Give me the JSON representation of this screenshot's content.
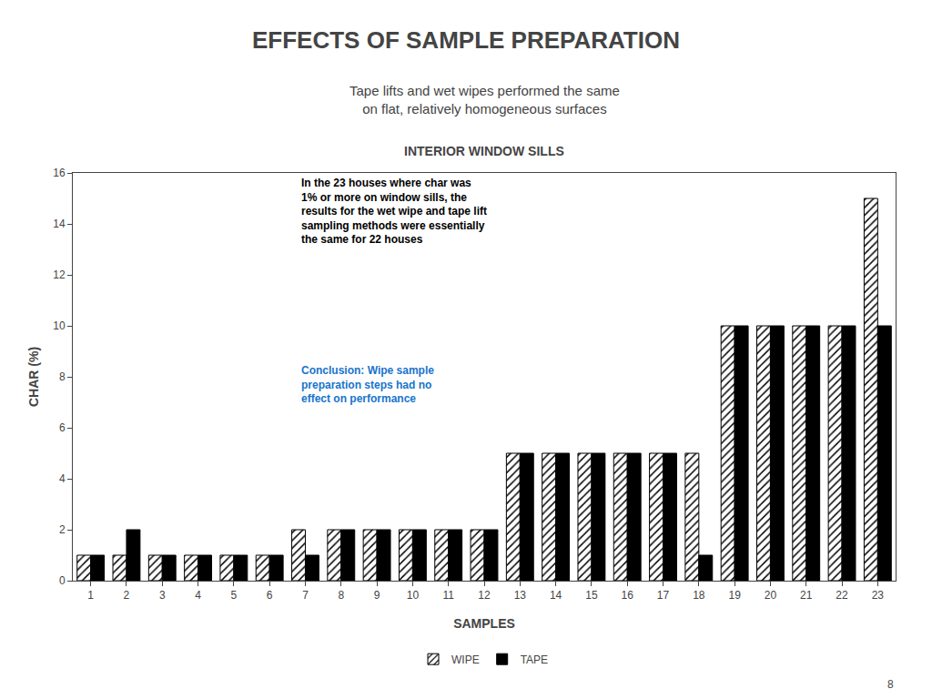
{
  "chart_data": {
    "type": "bar",
    "title": "EFFECTS OF SAMPLE PREPARATION",
    "subtitle": [
      "Tape lifts and wet wipes performed the same",
      "on flat, relatively homogeneous surfaces"
    ],
    "chart_title": "INTERIOR WINDOW SILLS",
    "x_label": "SAMPLES",
    "y_label": "CHAR (%)",
    "categories": [
      1,
      2,
      3,
      4,
      5,
      6,
      7,
      8,
      9,
      10,
      11,
      12,
      13,
      14,
      15,
      16,
      17,
      18,
      19,
      20,
      21,
      22,
      23
    ],
    "series": [
      {
        "name": "WIPE",
        "color": "#FFFFFF",
        "values": [
          1,
          1,
          1,
          1,
          1,
          1,
          2,
          2,
          2,
          2,
          2,
          2,
          5,
          5,
          5,
          5,
          5,
          5,
          10,
          10,
          10,
          10,
          15
        ]
      },
      {
        "name": "TAPE",
        "color": "#000000",
        "values": [
          1,
          2,
          1,
          1,
          1,
          1,
          1,
          2,
          2,
          2,
          2,
          2,
          5,
          5,
          5,
          5,
          5,
          1,
          10,
          10,
          10,
          10,
          10
        ]
      }
    ],
    "ylim": [
      0,
      16
    ],
    "yticks": [
      0,
      2,
      4,
      6,
      8,
      10,
      12,
      14,
      16
    ],
    "grid": false,
    "legend": "bottom",
    "annotations": [
      {
        "text": "In the 23 houses where char was\n1% or more on window sills, the\nresults for the wet wipe and tape lift\nsampling methods were essentially\nthe same for 22 houses",
        "color": "#000000"
      },
      {
        "text": "Conclusion: Wipe sample\npreparation steps had no\neffect on performance",
        "color": "#1874CD"
      }
    ],
    "page_number": "8"
  }
}
